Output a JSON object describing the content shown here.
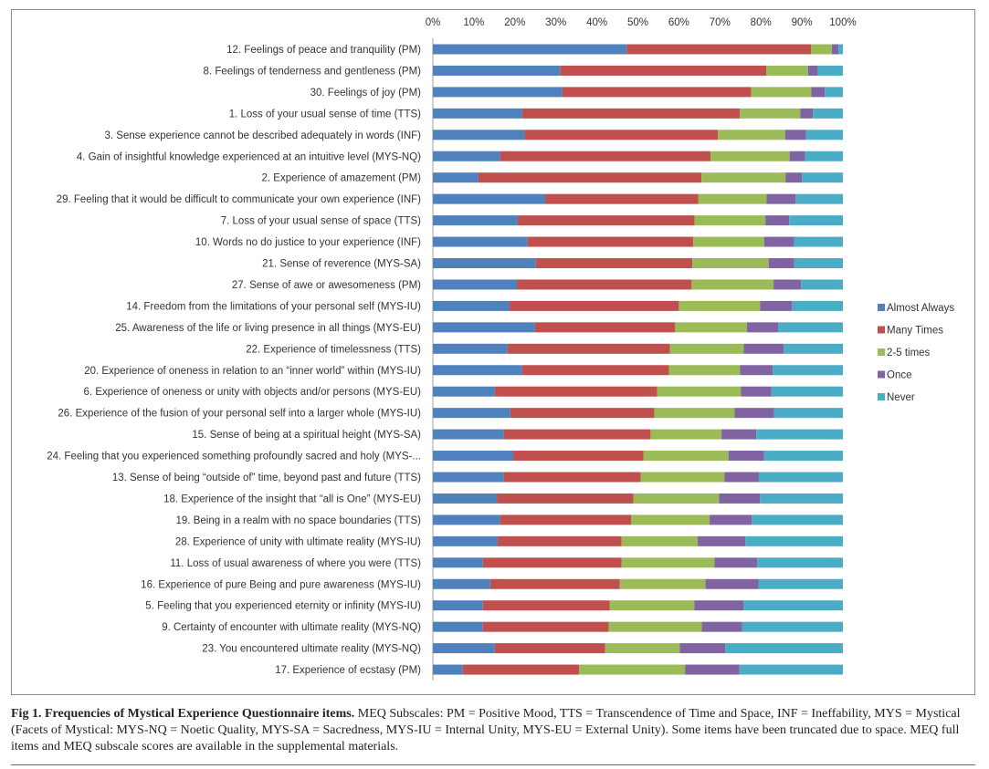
{
  "chart_data": {
    "type": "bar",
    "orientation": "horizontal",
    "stacked": "percent",
    "xlim": [
      0,
      100
    ],
    "x_ticks": [
      "0%",
      "10%",
      "20%",
      "30%",
      "40%",
      "50%",
      "60%",
      "70%",
      "80%",
      "90%",
      "100%"
    ],
    "x_axis_position": "top",
    "legend_position": "right",
    "grid": false,
    "categories": [
      "12. Feelings of peace and tranquility (PM)",
      "8. Feelings of tenderness and gentleness (PM)",
      "30. Feelings of joy (PM)",
      "1. Loss of your usual sense of time (TTS)",
      "3. Sense experience cannot be described adequately in words (INF)",
      "4. Gain of insightful knowledge experienced at an intuitive level (MYS-NQ)",
      "2. Experience of amazement (PM)",
      "29. Feeling that it would be difficult to communicate your own experience (INF)",
      "7. Loss of your usual sense of space (TTS)",
      "10. Words no do justice to your experience (INF)",
      "21. Sense of reverence (MYS-SA)",
      "27. Sense of awe or awesomeness (PM)",
      "14. Freedom from the limitations of your personal self (MYS-IU)",
      "25. Awareness of the life or living presence in all things (MYS-EU)",
      "22. Experience of timelessness (TTS)",
      "20. Experience of oneness in relation to an “inner world” within (MYS-IU)",
      "6. Experience of oneness or unity with objects and/or persons (MYS-EU)",
      "26. Experience of the fusion of your personal self into a larger whole (MYS-IU)",
      "15. Sense of being at a spiritual height (MYS-SA)",
      "24. Feeling that you experienced something profoundly sacred and holy (MYS-...",
      "13. Sense of being “outside of” time, beyond past and future (TTS)",
      "18. Experience of the insight that “all is One” (MYS-EU)",
      "19. Being in a realm with no space boundaries (TTS)",
      "28. Experience of unity with ultimate reality (MYS-IU)",
      "11. Loss of usual awareness of where you were (TTS)",
      "16. Experience of pure Being and pure awareness (MYS-IU)",
      "5. Feeling that you experienced eternity or infinity (MYS-IU)",
      "9. Certainty of encounter with ultimate reality (MYS-NQ)",
      "23. You encountered ultimate reality (MYS-NQ)",
      "17. Experience of ecstasy (PM)"
    ],
    "series": [
      {
        "name": "Almost Always",
        "color": "#4f81bd",
        "values": [
          47.3,
          31.1,
          31.6,
          21.8,
          22.4,
          16.4,
          11.1,
          27.4,
          20.7,
          23.1,
          25.1,
          20.5,
          18.7,
          24.9,
          18.2,
          21.8,
          15.1,
          18.9,
          17.3,
          19.6,
          17.3,
          15.6,
          16.4,
          15.8,
          12.2,
          14.0,
          12.2,
          12.2,
          15.1,
          7.3
        ],
        "labels_on_bars": false
      },
      {
        "name": "Many Times",
        "color": "#c0504d",
        "values": [
          44.9,
          50.2,
          46.0,
          53.1,
          47.1,
          51.3,
          54.4,
          37.3,
          43.1,
          40.4,
          38.2,
          42.6,
          41.3,
          34.2,
          39.6,
          35.8,
          39.6,
          35.1,
          35.8,
          31.8,
          33.4,
          33.3,
          32.0,
          30.2,
          33.8,
          31.6,
          30.9,
          30.7,
          26.9,
          28.4
        ],
        "labels_on_bars": false
      },
      {
        "name": "2-5 times",
        "color": "#9bbb59",
        "values": [
          5.1,
          10.2,
          14.7,
          14.7,
          16.4,
          19.3,
          20.5,
          16.7,
          17.3,
          17.3,
          18.6,
          20.0,
          19.8,
          17.5,
          18.0,
          17.3,
          20.4,
          19.6,
          17.3,
          20.7,
          20.4,
          20.9,
          19.1,
          18.6,
          22.7,
          20.9,
          20.7,
          22.7,
          18.2,
          25.8
        ],
        "labels_on_bars": false
      },
      {
        "name": "Once",
        "color": "#8064a2",
        "values": [
          1.6,
          2.4,
          3.3,
          3.1,
          5.1,
          3.8,
          4.0,
          7.1,
          5.8,
          7.3,
          6.2,
          6.7,
          7.8,
          7.6,
          9.8,
          8.0,
          7.5,
          9.6,
          8.5,
          8.7,
          8.4,
          10.0,
          10.3,
          11.6,
          10.4,
          12.9,
          12.0,
          9.8,
          11.1,
          13.3
        ],
        "labels_on_bars": false
      },
      {
        "name": "Never",
        "color": "#4bacc6",
        "values": [
          1.1,
          6.1,
          4.4,
          7.3,
          9.0,
          9.2,
          10.0,
          11.5,
          13.1,
          11.9,
          11.9,
          10.2,
          12.4,
          15.8,
          14.4,
          17.1,
          17.4,
          16.8,
          21.1,
          19.2,
          20.5,
          20.2,
          22.2,
          23.8,
          20.9,
          20.6,
          24.2,
          24.6,
          28.7,
          25.2
        ],
        "labels_on_bars": false
      }
    ]
  },
  "caption": {
    "title": "Fig 1. Frequencies of Mystical Experience Questionnaire items.",
    "text": " MEQ Subscales: PM = Positive Mood, TTS = Transcendence of Time and Space, INF = Ineffability, MYS = Mystical (Facets of Mystical: MYS-NQ = Noetic Quality, MYS-SA = Sacredness, MYS-IU = Internal Unity, MYS-EU = External Unity). Some items have been truncated due to space. MEQ full items and MEQ subscale scores are available in the supplemental materials."
  }
}
